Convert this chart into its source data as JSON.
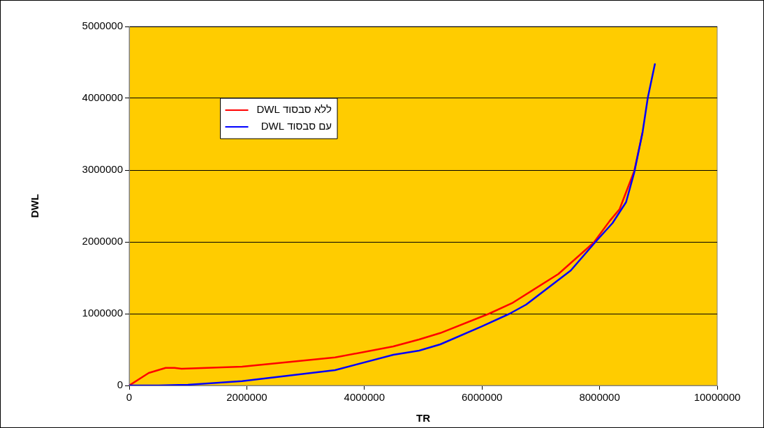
{
  "chart_data": {
    "type": "line",
    "xlabel": "TR",
    "ylabel": "DWL",
    "xlim": [
      0,
      10000000
    ],
    "xticks": [
      0,
      2000000,
      4000000,
      6000000,
      8000000,
      10000000
    ],
    "ylim": [
      0,
      5000000
    ],
    "yticks": [
      0,
      1000000,
      2000000,
      3000000,
      4000000,
      5000000
    ],
    "grid": "y",
    "legend": "top left",
    "marker": "none",
    "line_style": "solid",
    "series": [
      {
        "name": "ללא סבסוד DWL",
        "color": "#ff0000",
        "x": [
          0,
          333000,
          620000,
          770000,
          890000,
          1920000,
          3500000,
          4490000,
          4930000,
          5290000,
          6120000,
          6510000,
          7300000,
          7900000,
          8170000,
          8340000,
          8490000,
          8590000,
          8730000
        ],
        "values": [
          0,
          175000,
          245000,
          245000,
          233000,
          262000,
          390000,
          544000,
          641000,
          730000,
          1000000,
          1146000,
          1553000,
          1990000,
          2290000,
          2456000,
          2777000,
          2990000,
          3524000
        ]
      },
      {
        "name": "עם סבסוד DWL",
        "color": "#0000ff",
        "x": [
          0,
          500000,
          1000000,
          1920000,
          3500000,
          4490000,
          4930000,
          5290000,
          6000000,
          6470000,
          6750000,
          7510000,
          7930000,
          8220000,
          8450000,
          8590000,
          8730000,
          8820000,
          8940000
        ],
        "values": [
          0,
          0,
          10000,
          60000,
          213000,
          427000,
          485000,
          573000,
          825000,
          1000000,
          1126000,
          1602000,
          2000000,
          2262000,
          2553000,
          2970000,
          3524000,
          4010000,
          4475000
        ]
      }
    ]
  }
}
